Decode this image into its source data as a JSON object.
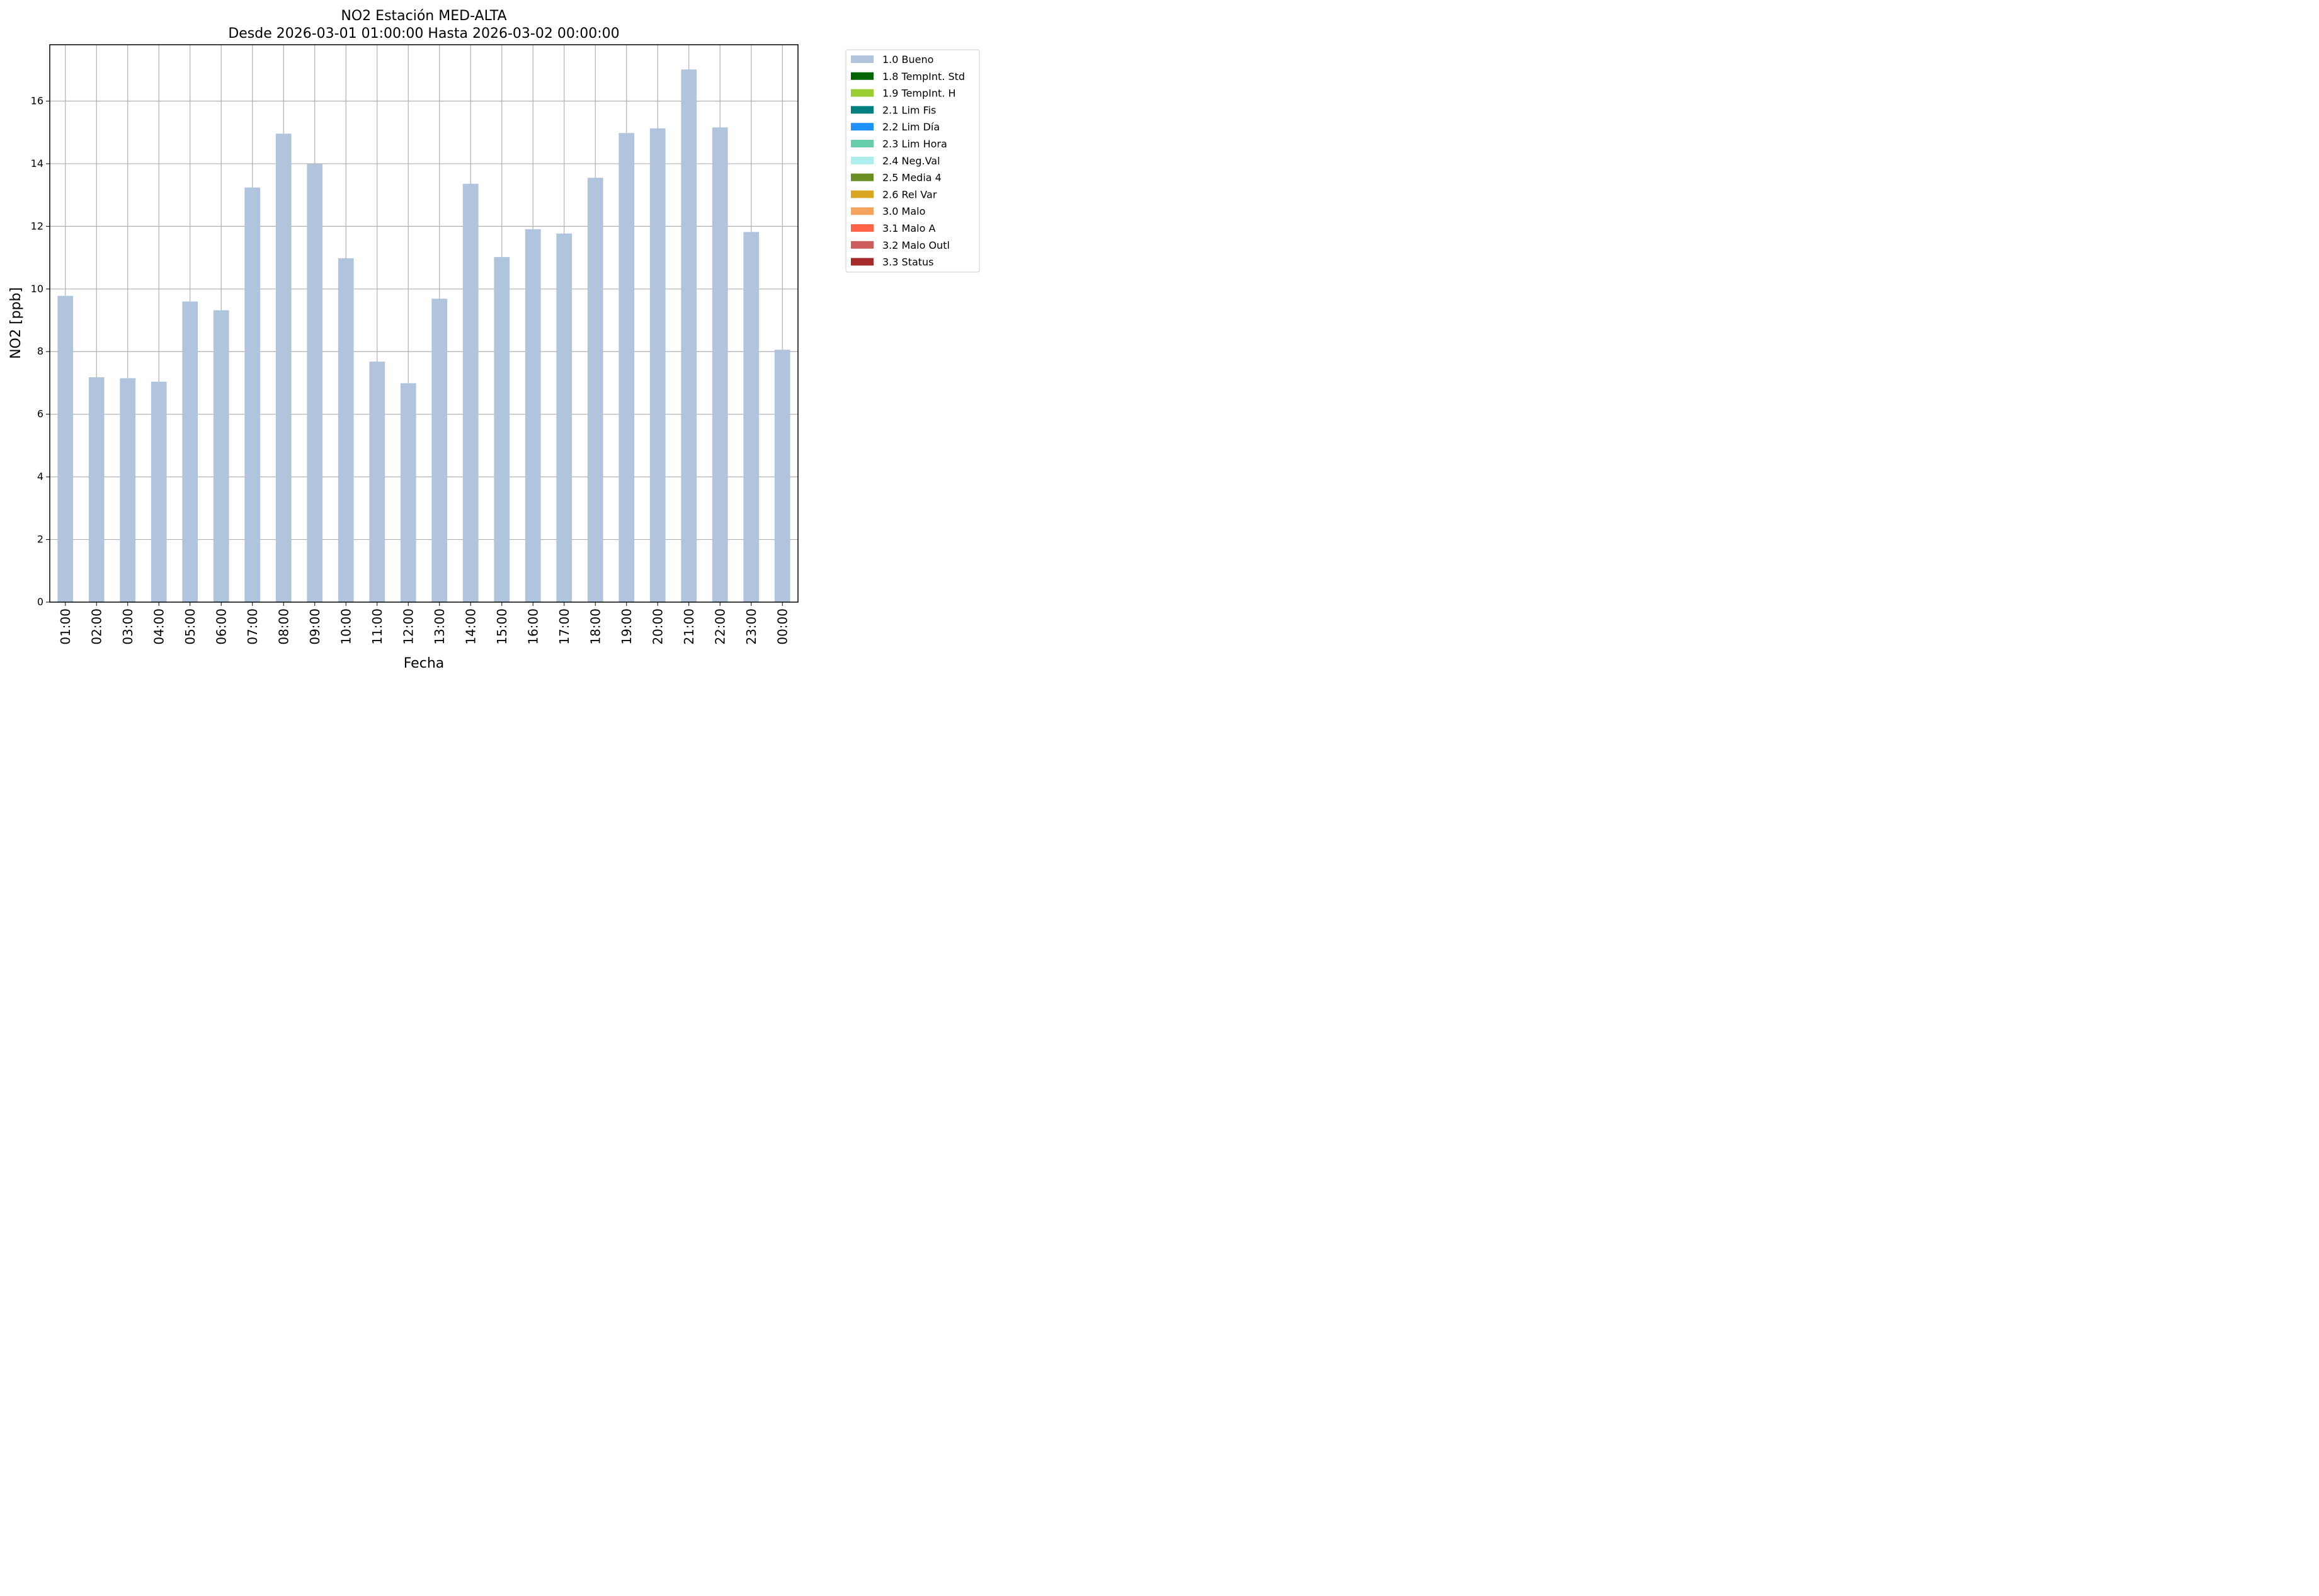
{
  "chart_data": {
    "type": "bar",
    "title": "NO2 Estación MED-ALTA",
    "subtitle": "Desde 2026-03-01 01:00:00 Hasta 2026-03-02 00:00:00",
    "xlabel": "Fecha",
    "ylabel": "NO2 [ppb]",
    "ylim": [
      0,
      17.8
    ],
    "yticks": [
      0,
      2,
      4,
      6,
      8,
      10,
      12,
      14,
      16
    ],
    "grid": true,
    "legend_position": "outside-top-right",
    "categories": [
      "01:00",
      "02:00",
      "03:00",
      "04:00",
      "05:00",
      "06:00",
      "07:00",
      "08:00",
      "09:00",
      "10:00",
      "11:00",
      "12:00",
      "13:00",
      "14:00",
      "15:00",
      "16:00",
      "17:00",
      "18:00",
      "19:00",
      "20:00",
      "21:00",
      "22:00",
      "23:00",
      "00:00"
    ],
    "series": [
      {
        "name": "1.0 Bueno",
        "color": "#b0c4de",
        "values": [
          9.78,
          7.18,
          7.15,
          7.04,
          9.6,
          9.32,
          13.24,
          14.96,
          13.99,
          10.98,
          7.68,
          6.99,
          9.69,
          13.36,
          11.02,
          11.91,
          11.77,
          13.55,
          14.98,
          15.13,
          17.01,
          15.16,
          11.82,
          8.06
        ]
      }
    ],
    "legend": [
      {
        "label": "1.0 Bueno",
        "color": "#b0c4de"
      },
      {
        "label": "1.8 TempInt. Std",
        "color": "#006400"
      },
      {
        "label": "1.9 TempInt. H",
        "color": "#9acd32"
      },
      {
        "label": "2.1 Lim Fis",
        "color": "#008080"
      },
      {
        "label": "2.2 Lim Día",
        "color": "#1e90ff"
      },
      {
        "label": "2.3 Lim Hora",
        "color": "#66cdaa"
      },
      {
        "label": "2.4 Neg.Val",
        "color": "#afeeee"
      },
      {
        "label": "2.5 Media 4",
        "color": "#6b8e23"
      },
      {
        "label": "2.6 Rel Var",
        "color": "#daa520"
      },
      {
        "label": "3.0 Malo",
        "color": "#f4a460"
      },
      {
        "label": "3.1 Malo A",
        "color": "#ff6347"
      },
      {
        "label": "3.2 Malo Outl",
        "color": "#cd5c5c"
      },
      {
        "label": "3.3 Status",
        "color": "#a52a2a"
      }
    ]
  }
}
